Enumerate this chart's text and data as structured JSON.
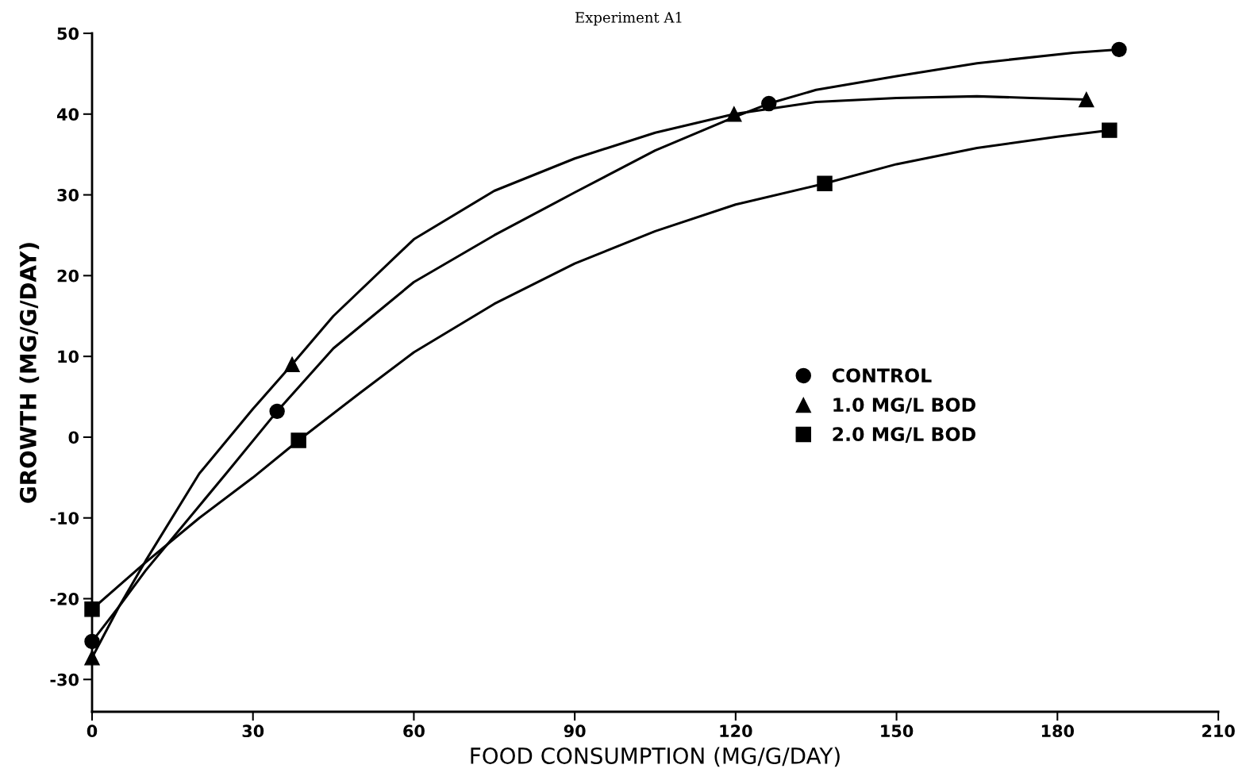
{
  "chart_data": {
    "type": "line",
    "title": "Experiment A1",
    "xlabel": "FOOD CONSUMPTION (MG/G/DAY)",
    "ylabel": "GROWTH (MG/G/DAY)",
    "xlim": [
      0,
      210
    ],
    "xticks": [
      0,
      30,
      60,
      90,
      120,
      150,
      180,
      210
    ],
    "ylim": [
      -34,
      50
    ],
    "yticks": [
      -30,
      -20,
      -10,
      0,
      10,
      20,
      30,
      40,
      50
    ],
    "grid": false,
    "legend": "right",
    "line_style": "solid",
    "series": [
      {
        "color": "#000000",
        "x": [
          0,
          5,
          10,
          20,
          25,
          34.5,
          45,
          60,
          75,
          90,
          105,
          120,
          126.2,
          135,
          150,
          165,
          183,
          191.5
        ],
        "values": [
          -25.3,
          -21,
          -16.5,
          -8.5,
          -4.5,
          3.2,
          11,
          19.2,
          25,
          30.3,
          35.5,
          39.7,
          41.3,
          43,
          44.7,
          46.3,
          47.6,
          48
        ]
      },
      {
        "color": "#000000",
        "x": [
          0,
          5,
          10,
          20,
          30,
          37.3,
          45,
          60,
          75,
          90,
          105,
          119.7,
          135,
          150,
          165,
          175,
          185.4
        ],
        "values": [
          -27.3,
          -21,
          -15.3,
          -4.5,
          3.5,
          9,
          15,
          24.5,
          30.5,
          34.5,
          37.7,
          40,
          41.5,
          42,
          42.2,
          42,
          41.8
        ]
      },
      {
        "color": "#000000",
        "x": [
          0,
          10,
          20,
          30,
          38.5,
          50,
          60,
          75,
          90,
          105,
          120,
          136.6,
          150,
          165,
          180,
          189.7
        ],
        "values": [
          -21.3,
          -15.5,
          -10,
          -5,
          -0.4,
          5.5,
          10.5,
          16.5,
          21.5,
          25.5,
          28.8,
          31.4,
          33.8,
          35.8,
          37.2,
          38
        ]
      },
      {
        "name": "CONTROL",
        "type": "scatter",
        "color": "#000000",
        "marker": "circle",
        "x": [
          0,
          34.5,
          126.2,
          191.5
        ],
        "values": [
          -25.3,
          3.2,
          41.3,
          48
        ]
      },
      {
        "name": "1.0 MG/L BOD",
        "type": "scatter",
        "color": "#000000",
        "marker": "triangle",
        "x": [
          0,
          37.3,
          119.7,
          185.4
        ],
        "values": [
          -27.3,
          9.0,
          40,
          41.8
        ]
      },
      {
        "name": "2.0 MG/L BOD",
        "type": "scatter",
        "color": "#000000",
        "marker": "square",
        "x": [
          0,
          38.5,
          136.6,
          189.7
        ],
        "values": [
          -21.3,
          -0.4,
          31.4,
          38
        ]
      }
    ]
  }
}
